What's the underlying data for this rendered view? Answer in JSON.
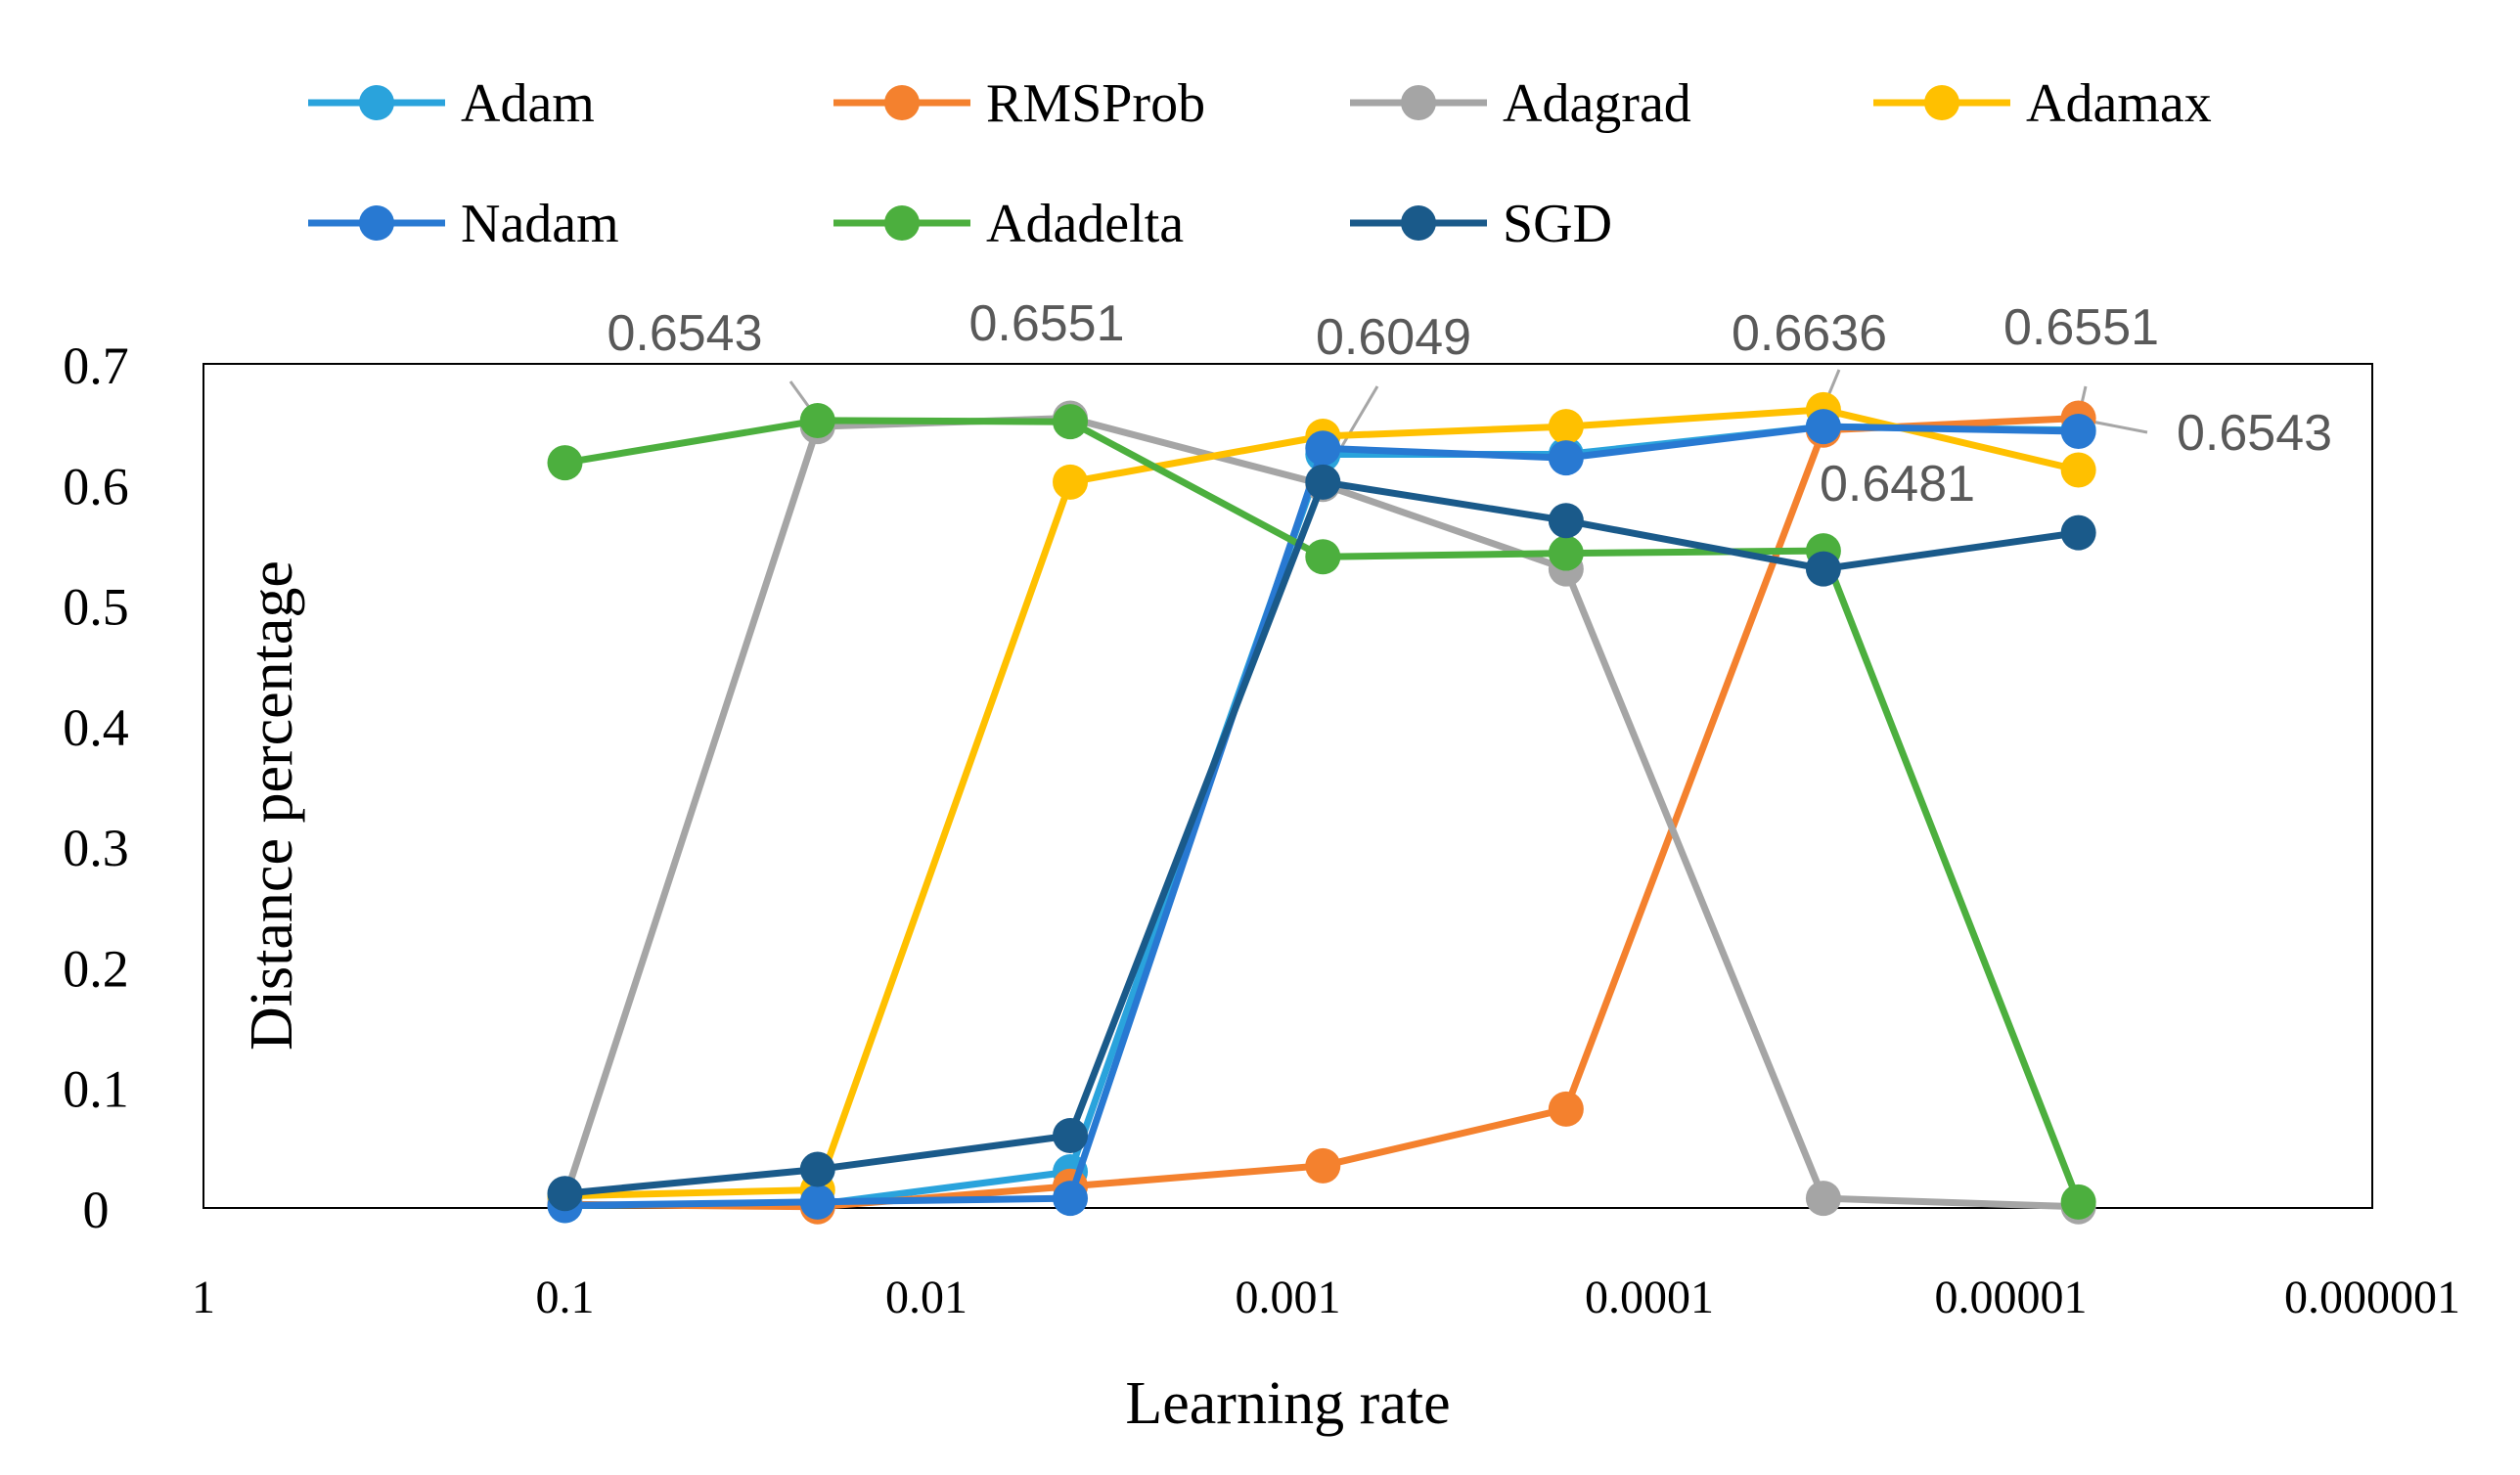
{
  "chart_data": {
    "type": "line",
    "title": "",
    "xlabel": "Learning rate",
    "ylabel": "Distance percentage",
    "x_scale": "log",
    "x_reversed": true,
    "xlim": [
      1,
      1e-06
    ],
    "ylim": [
      0,
      0.7
    ],
    "grid": false,
    "legend_position": "top",
    "x_ticks": [
      {
        "value": 1,
        "label": "1"
      },
      {
        "value": 0.1,
        "label": "0.1"
      },
      {
        "value": 0.01,
        "label": "0.01"
      },
      {
        "value": 0.001,
        "label": "0.001"
      },
      {
        "value": 0.0001,
        "label": "0.0001"
      },
      {
        "value": 1e-05,
        "label": "0.00001"
      },
      {
        "value": 1e-06,
        "label": "0.000001"
      }
    ],
    "y_ticks": [
      {
        "value": 0,
        "label": "0"
      },
      {
        "value": 0.1,
        "label": "0.1"
      },
      {
        "value": 0.2,
        "label": "0.2"
      },
      {
        "value": 0.3,
        "label": "0.3"
      },
      {
        "value": 0.4,
        "label": "0.4"
      },
      {
        "value": 0.5,
        "label": "0.5"
      },
      {
        "value": 0.6,
        "label": "0.6"
      },
      {
        "value": 0.7,
        "label": "0.7"
      }
    ],
    "x": [
      0.1,
      0.02,
      0.004,
      0.0008,
      0.00017,
      3.3e-05,
      6.5e-06
    ],
    "series": [
      {
        "name": "Adam",
        "color": "#2aa3dc",
        "values": [
          0.002,
          0.003,
          0.03,
          0.625,
          0.625,
          0.648,
          0.645
        ]
      },
      {
        "name": "RMSProb",
        "color": "#f4812e",
        "values": [
          0.003,
          0.001,
          0.018,
          0.035,
          0.082,
          0.645,
          0.655
        ]
      },
      {
        "name": "Adagrad",
        "color": "#a5a5a5",
        "values": [
          0.008,
          0.648,
          0.655,
          0.6,
          0.53,
          0.008,
          0.001
        ]
      },
      {
        "name": "Adamax",
        "color": "#ffc000",
        "values": [
          0.01,
          0.015,
          0.602,
          0.64,
          0.648,
          0.662,
          0.612
        ]
      },
      {
        "name": "Nadam",
        "color": "#2879d2",
        "values": [
          0.002,
          0.005,
          0.008,
          0.63,
          0.622,
          0.648,
          0.644
        ]
      },
      {
        "name": "Adadelta",
        "color": "#4caf3e",
        "values": [
          0.618,
          0.653,
          0.652,
          0.54,
          0.543,
          0.545,
          0.005
        ]
      },
      {
        "name": "SGD",
        "color": "#1a5a8a",
        "values": [
          0.012,
          0.032,
          0.06,
          0.602,
          0.57,
          0.53,
          0.56
        ]
      }
    ],
    "annotations": [
      {
        "text": "0.6543",
        "x": 0.02,
        "y": 0.6543
      },
      {
        "text": "0.6551",
        "x": 0.004,
        "y": 0.6551
      },
      {
        "text": "0.6049",
        "x": 0.0008,
        "y": 0.6049
      },
      {
        "text": "0.6636",
        "x": 3.3e-05,
        "y": 0.6636
      },
      {
        "text": "0.6481",
        "x": 3.3e-05,
        "y": 0.6481
      },
      {
        "text": "0.6551",
        "x": 6.5e-06,
        "y": 0.6551
      },
      {
        "text": "0.6543",
        "x": 6.5e-06,
        "y": 0.6543
      }
    ]
  }
}
